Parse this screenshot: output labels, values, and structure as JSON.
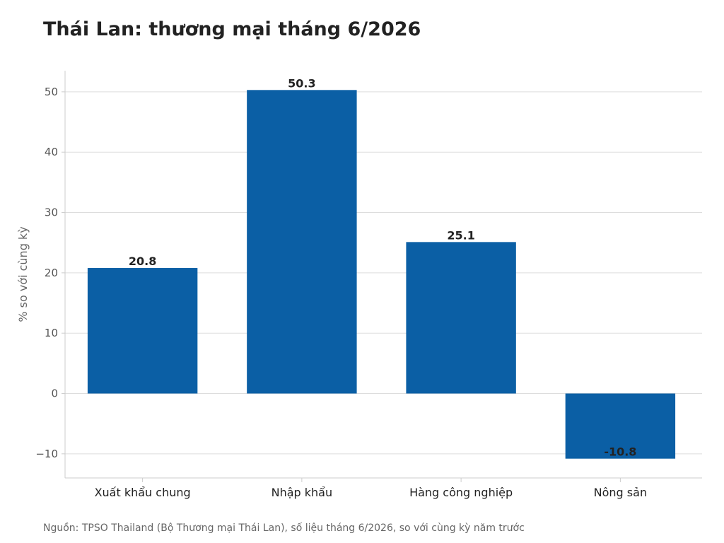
{
  "colors": {
    "bar": "#0b5fa5",
    "grid": "#dddddd",
    "axis": "#cccccc"
  },
  "footer": {
    "source": "Nguồn: TPSO Thailand (Bộ Thương mại Thái Lan), số liệu tháng 6/2026, so với cùng kỳ năm trước"
  },
  "chart_data": {
    "type": "bar",
    "title": "Thái Lan: thương mại tháng 6/2026",
    "xlabel": "",
    "ylabel": "% so với cùng kỳ",
    "categories": [
      "Xuất khẩu chung",
      "Nhập khẩu",
      "Hàng công nghiệp",
      "Nông sản"
    ],
    "values": [
      20.8,
      50.3,
      25.1,
      -10.8
    ],
    "data_labels": [
      "20.8",
      "50.3",
      "25.1",
      "-10.8"
    ],
    "ylim": [
      -14,
      53.5
    ],
    "yticks": [
      -10,
      0,
      10,
      20,
      30,
      40,
      50
    ],
    "ytick_labels": [
      "−10",
      "0",
      "10",
      "20",
      "30",
      "40",
      "50"
    ],
    "grid": true,
    "legend": "none"
  }
}
